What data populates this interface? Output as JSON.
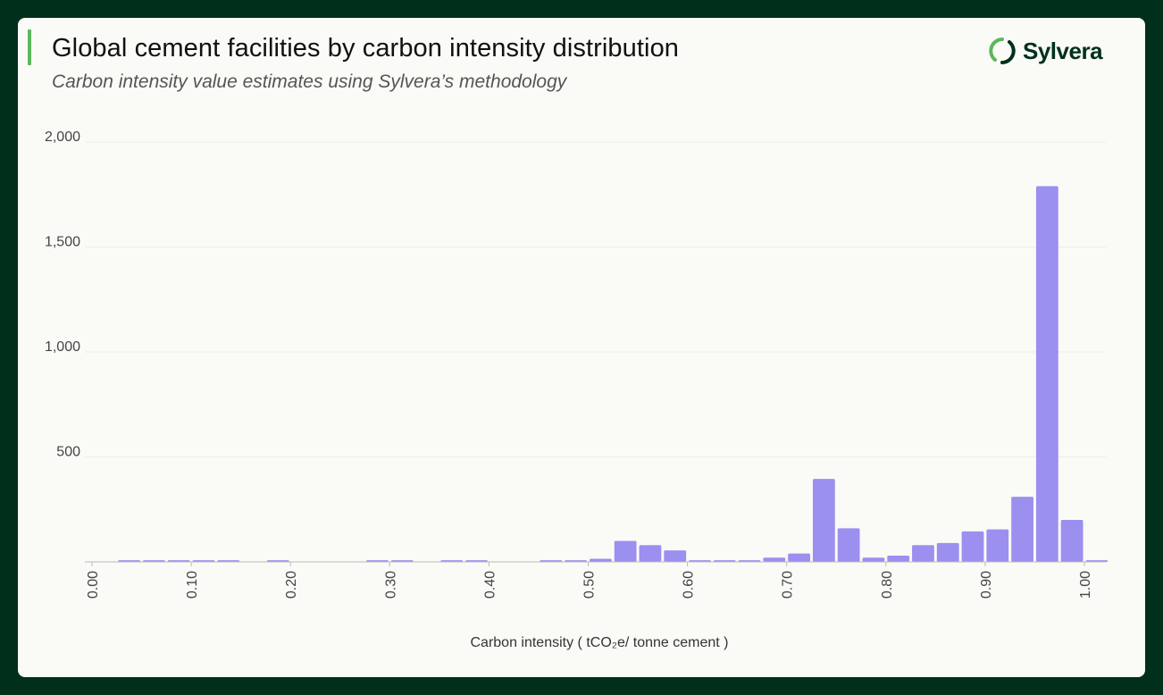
{
  "header": {
    "title": "Global cement facilities by carbon intensity distribution",
    "subtitle": "Carbon intensity value estimates using Sylvera’s methodology",
    "logo_text": "Sylvera"
  },
  "colors": {
    "bar": "#9b8fef",
    "accent": "#5cb85c",
    "background": "#00301c",
    "card": "#fafaf7"
  },
  "chart_data": {
    "type": "bar",
    "xlabel": "Carbon intensity ( tCO₂e/ tonne cement )",
    "ylabel": "",
    "ylim": [
      0,
      2000
    ],
    "yticks": [
      500,
      1000,
      1500,
      2000
    ],
    "ytick_labels": [
      "500",
      "1,000",
      "1,500",
      "2,000"
    ],
    "xticks": [
      0.0,
      0.1,
      0.2,
      0.3,
      0.4,
      0.5,
      0.6,
      0.7,
      0.8,
      0.9,
      1.0
    ],
    "xtick_labels": [
      "0.00",
      "0.10",
      "0.20",
      "0.30",
      "0.40",
      "0.50",
      "0.60",
      "0.70",
      "0.80",
      "0.90",
      "1.00"
    ],
    "xlim": [
      0.0,
      1.0
    ],
    "bin_width": 0.025,
    "bin_starts": [
      0.0,
      0.025,
      0.05,
      0.075,
      0.1,
      0.125,
      0.15,
      0.175,
      0.2,
      0.225,
      0.25,
      0.275,
      0.3,
      0.325,
      0.35,
      0.375,
      0.4,
      0.425,
      0.45,
      0.475,
      0.5,
      0.525,
      0.55,
      0.575,
      0.6,
      0.625,
      0.65,
      0.675,
      0.7,
      0.725,
      0.75,
      0.775,
      0.8,
      0.825,
      0.85,
      0.875,
      0.9,
      0.925,
      0.95,
      0.975,
      1.0
    ],
    "values": [
      0,
      8,
      8,
      8,
      8,
      8,
      0,
      8,
      0,
      0,
      0,
      8,
      8,
      0,
      8,
      8,
      0,
      0,
      8,
      8,
      15,
      100,
      80,
      55,
      8,
      8,
      8,
      20,
      40,
      395,
      160,
      20,
      30,
      80,
      90,
      145,
      155,
      310,
      1790,
      200,
      8
    ],
    "grid": true
  }
}
